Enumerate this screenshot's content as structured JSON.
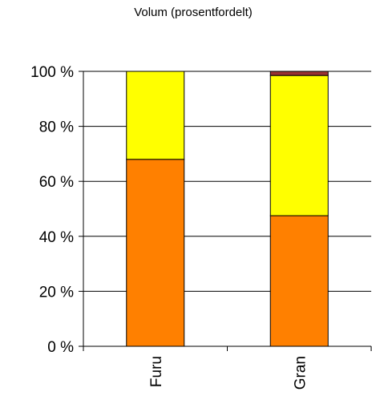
{
  "chart_data": {
    "type": "bar",
    "stacked": true,
    "title": "Volum (prosentfordelt)",
    "xlabel": "",
    "ylabel": "",
    "categories": [
      "Furu",
      "Gran"
    ],
    "ylim": [
      0,
      100
    ],
    "yticks": [
      {
        "value": 0,
        "label": "0 %"
      },
      {
        "value": 20,
        "label": "20 %"
      },
      {
        "value": 40,
        "label": "40 %"
      },
      {
        "value": 60,
        "label": "60 %"
      },
      {
        "value": 80,
        "label": "80 %"
      },
      {
        "value": 100,
        "label": "100 %"
      }
    ],
    "grid": true,
    "legend": "none",
    "series": [
      {
        "color": "#FF8000",
        "values": [
          68,
          47.5
        ]
      },
      {
        "color": "#FFFF00",
        "values": [
          32,
          51
        ]
      },
      {
        "color": "#993333",
        "values": [
          0,
          1.5
        ]
      }
    ]
  }
}
